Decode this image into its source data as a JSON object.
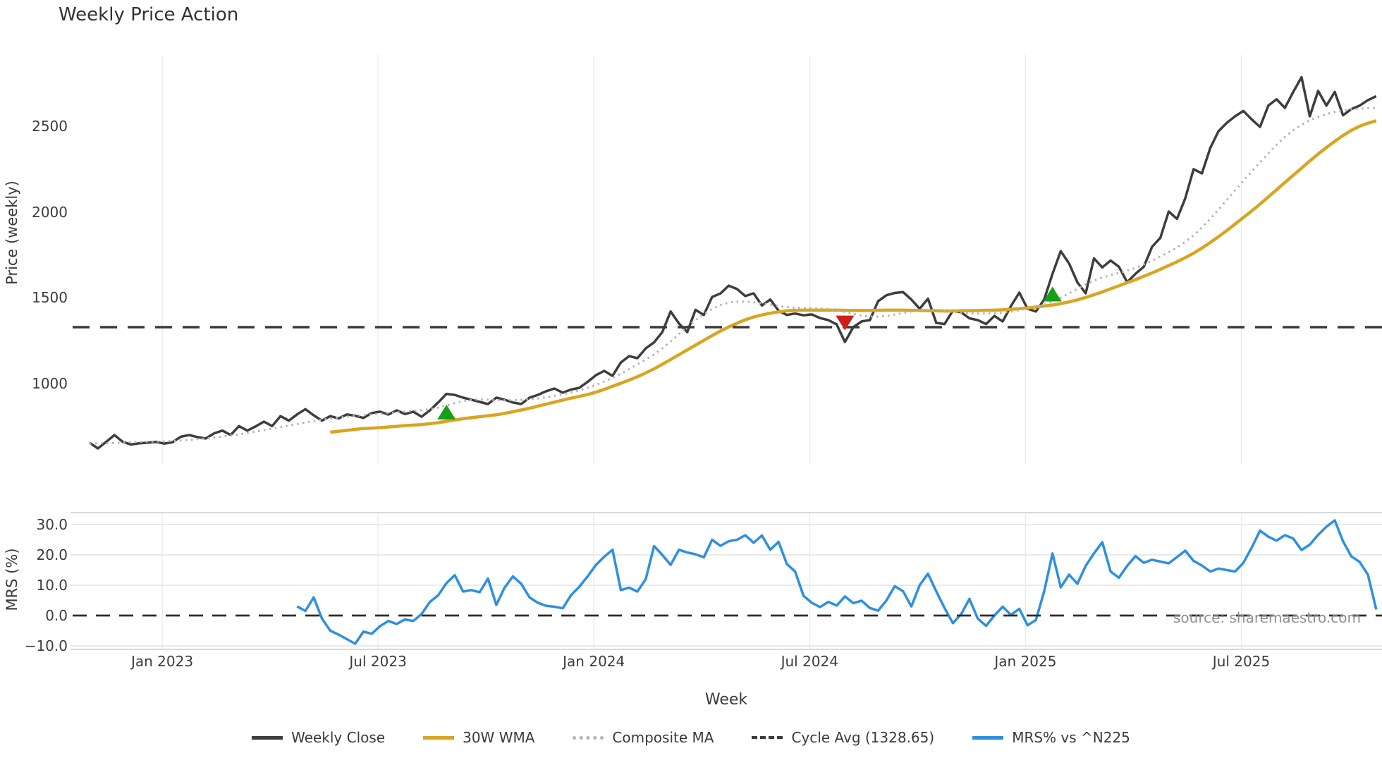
{
  "page": {
    "background": "#ffffff",
    "source": "source: sharemaestro.com"
  },
  "chart_data": {
    "type": "line",
    "title": "Weekly Price Action",
    "xlabel": "Week",
    "grid": true,
    "legend_position": "bottom-center",
    "panels": {
      "price": {
        "ylabel": "Price (weekly)",
        "ylim": [
          600,
          2970
        ],
        "yticks": [
          {
            "label": "2500",
            "value": 2500
          },
          {
            "label": "2000",
            "value": 2000
          },
          {
            "label": "1500",
            "value": 1500
          },
          {
            "label": "1000",
            "value": 1000
          }
        ]
      },
      "mrs": {
        "ylabel": "MRS (%)",
        "ylim": [
          -13,
          34
        ],
        "yticks": [
          {
            "label": "30.0",
            "value": 30
          },
          {
            "label": "20.0",
            "value": 20
          },
          {
            "label": "10.0",
            "value": 10
          },
          {
            "label": "0.0",
            "value": 0
          },
          {
            "label": "−10.0",
            "value": -10
          }
        ]
      }
    },
    "x_unit": "week_index",
    "weeks_total": 156,
    "xticks": [
      {
        "label": "Jan 2023",
        "week": 8.75
      },
      {
        "label": "Jul 2023",
        "week": 34.75
      },
      {
        "label": "Jan 2024",
        "week": 60.75
      },
      {
        "label": "Jul 2024",
        "week": 86.75
      },
      {
        "label": "Jan 2025",
        "week": 112.75
      },
      {
        "label": "Jul 2025",
        "week": 138.75
      }
    ],
    "series": [
      {
        "name": "Weekly Close",
        "panel": "price",
        "color": "#3d3d3d",
        "style": "solid",
        "width": 3.5,
        "start_week": 0,
        "values": [
          655,
          622,
          660,
          700,
          660,
          645,
          652,
          655,
          660,
          650,
          658,
          690,
          700,
          688,
          680,
          710,
          726,
          700,
          752,
          726,
          750,
          778,
          752,
          810,
          784,
          820,
          851,
          815,
          784,
          810,
          797,
          820,
          812,
          800,
          828,
          836,
          819,
          844,
          822,
          836,
          807,
          844,
          890,
          940,
          934,
          918,
          906,
          893,
          881,
          918,
          906,
          890,
          881,
          918,
          934,
          955,
          971,
          947,
          965,
          975,
          1010,
          1049,
          1074,
          1045,
          1123,
          1160,
          1148,
          1205,
          1240,
          1300,
          1420,
          1350,
          1300,
          1430,
          1400,
          1505,
          1525,
          1571,
          1551,
          1510,
          1526,
          1455,
          1490,
          1425,
          1400,
          1408,
          1398,
          1403,
          1382,
          1370,
          1345,
          1242,
          1329,
          1362,
          1370,
          1480,
          1515,
          1528,
          1533,
          1490,
          1436,
          1495,
          1354,
          1347,
          1425,
          1415,
          1380,
          1370,
          1347,
          1394,
          1362,
          1452,
          1530,
          1436,
          1420,
          1490,
          1640,
          1772,
          1700,
          1590,
          1526,
          1730,
          1677,
          1717,
          1681,
          1591,
          1640,
          1681,
          1797,
          1850,
          2003,
          1960,
          2080,
          2250,
          2225,
          2373,
          2471,
          2520,
          2558,
          2589,
          2540,
          2496,
          2620,
          2657,
          2607,
          2700,
          2786,
          2558,
          2706,
          2620,
          2700,
          2564,
          2600,
          2620,
          2652,
          2675
        ]
      },
      {
        "name": "30W WMA",
        "panel": "price",
        "color": "#d9a521",
        "style": "solid",
        "width": 4.5,
        "start_week": 29,
        "values": [
          716,
          722,
          727,
          733,
          738,
          740,
          743,
          747,
          751,
          755,
          758,
          761,
          766,
          772,
          780,
          788,
          795,
          801,
          807,
          812,
          818,
          826,
          836,
          846,
          856,
          868,
          880,
          892,
          904,
          915,
          925,
          936,
          950,
          966,
          984,
          1002,
          1020,
          1040,
          1062,
          1086,
          1112,
          1140,
          1168,
          1196,
          1224,
          1252,
          1280,
          1306,
          1330,
          1352,
          1372,
          1388,
          1400,
          1410,
          1418,
          1424,
          1427,
          1428,
          1428,
          1428,
          1428,
          1428,
          1427,
          1426,
          1426,
          1426,
          1427,
          1428,
          1428,
          1428,
          1427,
          1426,
          1425,
          1424,
          1423,
          1423,
          1424,
          1425,
          1426,
          1427,
          1428,
          1430,
          1433,
          1437,
          1441,
          1446,
          1452,
          1458,
          1466,
          1476,
          1488,
          1502,
          1518,
          1534,
          1552,
          1570,
          1588,
          1606,
          1625,
          1645,
          1666,
          1688,
          1710,
          1734,
          1760,
          1790,
          1822,
          1856,
          1892,
          1930,
          1968,
          2006,
          2046,
          2088,
          2130,
          2172,
          2214,
          2256,
          2298,
          2338,
          2376,
          2412,
          2446,
          2476,
          2500,
          2518,
          2532
        ]
      },
      {
        "name": "Composite MA",
        "panel": "price",
        "color": "#b3b3b3",
        "style": "dotted",
        "width": 3,
        "start_week": 0,
        "values": [
          650,
          651,
          652,
          654,
          657,
          659,
          660,
          661,
          662,
          663,
          665,
          668,
          672,
          676,
          680,
          685,
          691,
          697,
          704,
          712,
          720,
          728,
          737,
          746,
          755,
          764,
          773,
          781,
          789,
          796,
          802,
          807,
          812,
          816,
          820,
          824,
          828,
          832,
          836,
          840,
          845,
          851,
          860,
          872,
          886,
          898,
          905,
          908,
          906,
          903,
          902,
          903,
          905,
          908,
          913,
          920,
          929,
          938,
          948,
          960,
          975,
          992,
          1012,
          1034,
          1058,
          1084,
          1112,
          1140,
          1170,
          1205,
          1245,
          1288,
          1330,
          1370,
          1405,
          1435,
          1458,
          1472,
          1478,
          1478,
          1474,
          1468,
          1460,
          1452,
          1446,
          1442,
          1440,
          1440,
          1438,
          1434,
          1428,
          1418,
          1406,
          1396,
          1390,
          1390,
          1394,
          1402,
          1412,
          1420,
          1426,
          1430,
          1430,
          1426,
          1420,
          1414,
          1410,
          1408,
          1408,
          1410,
          1414,
          1420,
          1428,
          1438,
          1448,
          1460,
          1478,
          1500,
          1526,
          1552,
          1578,
          1600,
          1618,
          1632,
          1645,
          1658,
          1674,
          1694,
          1716,
          1740,
          1766,
          1794,
          1826,
          1864,
          1910,
          1960,
          2014,
          2070,
          2126,
          2182,
          2236,
          2290,
          2342,
          2392,
          2438,
          2476,
          2508,
          2535,
          2555,
          2571,
          2583,
          2592,
          2599,
          2603,
          2605,
          2606
        ]
      },
      {
        "name": "Cycle Avg (1328.65)",
        "panel": "price",
        "color": "#3a3a3a",
        "style": "dashed",
        "width": 3.5,
        "constant": 1328.65
      },
      {
        "name": "MRS% vs ^N225",
        "panel": "mrs",
        "color": "#2e8fe0",
        "style": "solid",
        "width": 3.5,
        "start_week": 25,
        "values": [
          3.0,
          1.5,
          6.0,
          -1.0,
          -5.0,
          -6.3,
          -7.8,
          -9.3,
          -5.3,
          -6.0,
          -3.5,
          -1.8,
          -2.8,
          -1.3,
          -1.8,
          0.5,
          4.5,
          6.7,
          10.7,
          13.3,
          7.9,
          8.4,
          7.7,
          12.2,
          3.5,
          9.2,
          12.9,
          10.5,
          6.0,
          4.2,
          3.2,
          2.9,
          2.4,
          6.7,
          9.5,
          12.9,
          16.7,
          19.4,
          21.7,
          8.4,
          9.2,
          7.9,
          12.0,
          22.9,
          20.0,
          16.7,
          21.7,
          20.8,
          20.2,
          19.2,
          25.0,
          23.0,
          24.5,
          25.0,
          26.5,
          24.0,
          26.4,
          21.7,
          24.3,
          17.0,
          14.5,
          6.5,
          4.2,
          2.8,
          4.5,
          3.3,
          6.3,
          4.1,
          4.9,
          2.5,
          1.6,
          5.0,
          9.7,
          8.0,
          3.0,
          10.0,
          13.8,
          8.0,
          2.5,
          -2.5,
          0.5,
          5.5,
          -1.0,
          -3.4,
          0.0,
          2.9,
          0.2,
          2.2,
          -3.2,
          -1.5,
          8.0,
          20.5,
          9.3,
          13.5,
          10.5,
          16.4,
          20.5,
          24.2,
          14.5,
          12.5,
          16.4,
          19.6,
          17.4,
          18.4,
          17.8,
          17.2,
          19.3,
          21.4,
          18.0,
          16.5,
          14.5,
          15.5,
          15.0,
          14.5,
          17.4,
          22.4,
          28.0,
          26.0,
          24.7,
          26.5,
          25.4,
          21.6,
          23.4,
          26.6,
          29.3,
          31.4,
          24.5,
          19.5,
          17.7,
          13.5,
          2.0
        ]
      },
      {
        "name": "MRS zero line",
        "panel": "mrs",
        "color": "#2b2b2b",
        "style": "dashed",
        "width": 2.8,
        "constant": 0
      }
    ],
    "markers": [
      {
        "shape": "triangle-up",
        "color": "#17a017",
        "week": 43,
        "price": 832
      },
      {
        "shape": "triangle-down",
        "color": "#cf1d1d",
        "week": 91,
        "price": 1355
      },
      {
        "shape": "triangle-up",
        "color": "#17a017",
        "week": 116,
        "price": 1520
      }
    ],
    "legend": [
      {
        "label": "Weekly Close",
        "color": "#3d3d3d",
        "style": "solid"
      },
      {
        "label": "30W WMA",
        "color": "#d9a521",
        "style": "solid"
      },
      {
        "label": "Composite MA",
        "color": "#b3b3b3",
        "style": "dotted"
      },
      {
        "label": "Cycle Avg (1328.65)",
        "color": "#3a3a3a",
        "style": "dashed"
      },
      {
        "label": "MRS% vs ^N225",
        "color": "#2e8fe0",
        "style": "solid"
      }
    ],
    "colors": {
      "grid_vertical": "#e9ecf1",
      "grid_horizontal": "#e4e4e9",
      "spine": "#d2d2d7",
      "background": "#ffffff"
    }
  }
}
